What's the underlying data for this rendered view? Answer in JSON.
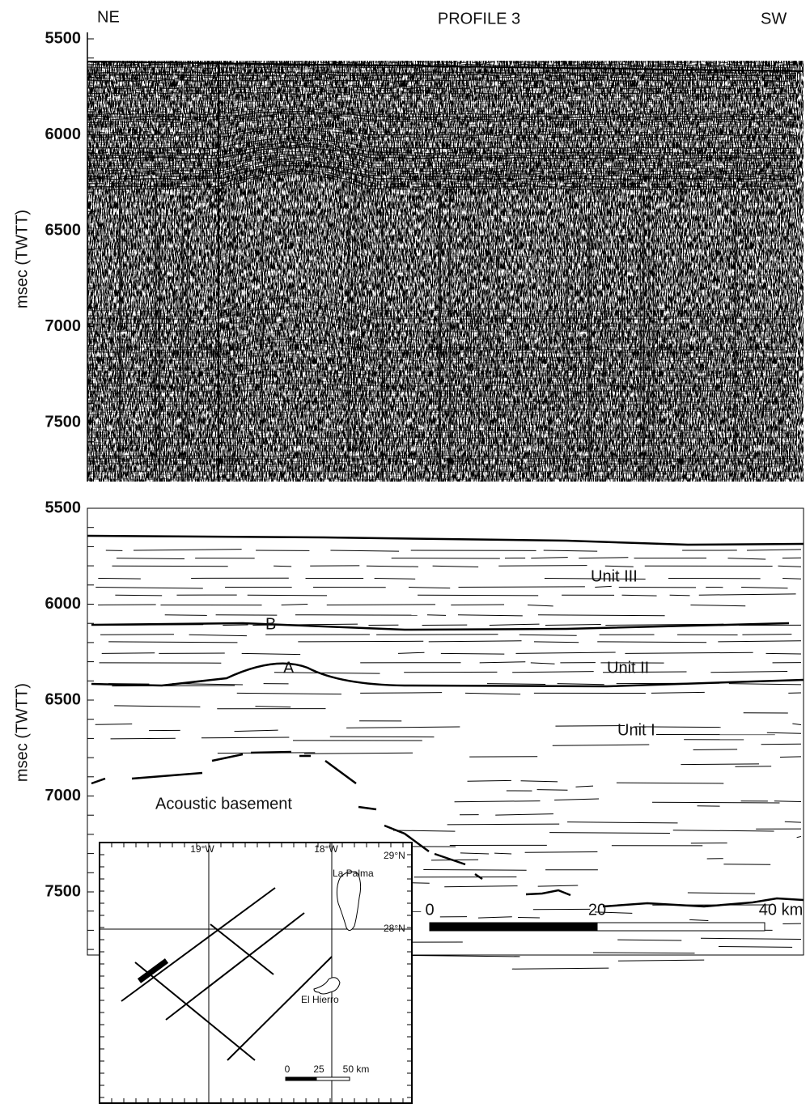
{
  "header": {
    "left": "NE",
    "center": "PROFILE 3",
    "right": "SW"
  },
  "seismic_panel": {
    "y_axis_label": "msec (TWTT)",
    "y_ticks": [
      5500,
      6000,
      6500,
      7000,
      7500
    ]
  },
  "interpretation_panel": {
    "y_axis_label": "msec (TWTT)",
    "y_ticks": [
      5500,
      6000,
      6500,
      7000,
      7500
    ],
    "labels": {
      "unit_3": "Unit III",
      "horizon_b": "B",
      "horizon_a": "A",
      "unit_2": "Unit II",
      "unit_1": "Unit I",
      "basement": "Acoustic basement"
    }
  },
  "scale_bar": {
    "ticks": [
      0,
      20
    ],
    "end_label": "40 km"
  },
  "inset_map": {
    "lon_labels": [
      "19°W",
      "18°W"
    ],
    "lat_labels": [
      "29°N",
      "28°N"
    ],
    "islands": [
      "La Palma",
      "El Hierro"
    ],
    "scale_bar": {
      "ticks": [
        0,
        25
      ],
      "end_label": "50 km"
    }
  }
}
